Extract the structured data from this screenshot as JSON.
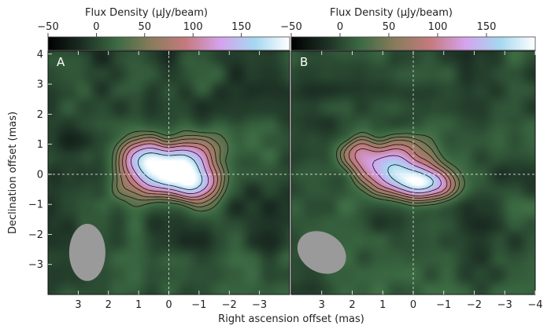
{
  "chart_data": [
    {
      "type": "heatmap",
      "panel_label": "A",
      "xlabel": "Right ascension offset (mas)",
      "ylabel": "Declination offset (mas)",
      "x_ticks": [
        3,
        2,
        1,
        0,
        -1,
        -2,
        -3
      ],
      "y_ticks": [
        4,
        3,
        2,
        1,
        0,
        -1,
        -2,
        -3
      ],
      "xlim": [
        4,
        -4
      ],
      "ylim": [
        -4,
        4.1
      ],
      "colorbar": {
        "label": "Flux Density (μJy/beam)",
        "ticks": [
          -50,
          0,
          50,
          100,
          150
        ],
        "range": [
          -50,
          200
        ],
        "stops": [
          "#000000",
          "#1c2f24",
          "#3c6b43",
          "#8a7c5c",
          "#c57a7e",
          "#d5a3ee",
          "#a5d8f0",
          "#ffffff"
        ]
      },
      "components": [
        {
          "x": 0.0,
          "y": 0.2,
          "peak": 185,
          "sx": 1.05,
          "sy": 0.52,
          "angle_deg": -22
        },
        {
          "x": -0.9,
          "y": -0.3,
          "peak": 150,
          "sx": 0.55,
          "sy": 0.42,
          "angle_deg": 0
        },
        {
          "x": 1.0,
          "y": 0.55,
          "peak": 110,
          "sx": 0.55,
          "sy": 0.45,
          "angle_deg": 0
        }
      ],
      "contour_levels": [
        30,
        45,
        60,
        80,
        100,
        130,
        165
      ],
      "beam": {
        "x": 2.7,
        "y": -2.6,
        "major": 1.9,
        "minor": 1.2,
        "angle_deg": 0
      }
    },
    {
      "type": "heatmap",
      "panel_label": "B",
      "xlabel": "",
      "ylabel": "",
      "x_ticks": [
        3,
        2,
        1,
        0,
        -1,
        -2,
        -3,
        -4
      ],
      "xlim": [
        4,
        -4
      ],
      "ylim": [
        -4,
        4.1
      ],
      "colorbar": {
        "label": "Flux Density (μJy/beam)",
        "ticks": [
          -50,
          0,
          50,
          100,
          150
        ],
        "range": [
          -50,
          200
        ],
        "stops": [
          "#000000",
          "#1c2f24",
          "#3c6b43",
          "#8a7c5c",
          "#c57a7e",
          "#d5a3ee",
          "#a5d8f0",
          "#ffffff"
        ]
      },
      "components": [
        {
          "x": 0.7,
          "y": 0.3,
          "peak": 150,
          "sx": 0.8,
          "sy": 0.55,
          "angle_deg": -25
        },
        {
          "x": -0.3,
          "y": -0.3,
          "peak": 185,
          "sx": 0.65,
          "sy": 0.38,
          "angle_deg": 0
        },
        {
          "x": 1.9,
          "y": 0.7,
          "peak": 90,
          "sx": 0.5,
          "sy": 0.42,
          "angle_deg": 0
        }
      ],
      "contour_levels": [
        30,
        45,
        60,
        80,
        100,
        130,
        165
      ],
      "beam": {
        "x": 3.0,
        "y": -2.6,
        "major": 1.7,
        "minor": 1.3,
        "angle_deg": -60
      }
    }
  ]
}
